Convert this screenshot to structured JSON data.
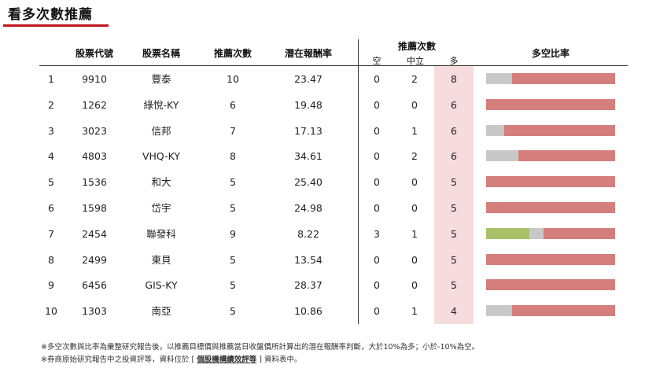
{
  "title": "看多次數推薦",
  "headers": {
    "code": "股票代號",
    "name": "股票名稱",
    "count": "推薦次數",
    "return": "潛在報酬率",
    "rec_count": "推薦次數",
    "bear": "空",
    "neutral": "中立",
    "bull": "多",
    "ratio": "多空比率"
  },
  "rows": [
    {
      "rank": "1",
      "code": "9910",
      "name": "豐泰",
      "count": "10",
      "return": "23.47",
      "bear": "0",
      "neutral": "2",
      "bull": "8"
    },
    {
      "rank": "2",
      "code": "1262",
      "name": "綠悅-KY",
      "count": "6",
      "return": "19.48",
      "bear": "0",
      "neutral": "0",
      "bull": "6"
    },
    {
      "rank": "3",
      "code": "3023",
      "name": "信邦",
      "count": "7",
      "return": "17.13",
      "bear": "0",
      "neutral": "1",
      "bull": "6"
    },
    {
      "rank": "4",
      "code": "4803",
      "name": "VHQ-KY",
      "count": "8",
      "return": "34.61",
      "bear": "0",
      "neutral": "2",
      "bull": "6"
    },
    {
      "rank": "5",
      "code": "1536",
      "name": "和大",
      "count": "5",
      "return": "25.40",
      "bear": "0",
      "neutral": "0",
      "bull": "5"
    },
    {
      "rank": "6",
      "code": "1598",
      "name": "岱宇",
      "count": "5",
      "return": "24.98",
      "bear": "0",
      "neutral": "0",
      "bull": "5"
    },
    {
      "rank": "7",
      "code": "2454",
      "name": "聯發科",
      "count": "9",
      "return": "8.22",
      "bear": "3",
      "neutral": "1",
      "bull": "5"
    },
    {
      "rank": "8",
      "code": "2499",
      "name": "東貝",
      "count": "5",
      "return": "13.54",
      "bear": "0",
      "neutral": "0",
      "bull": "5"
    },
    {
      "rank": "9",
      "code": "6456",
      "name": "GIS-KY",
      "count": "5",
      "return": "28.37",
      "bear": "0",
      "neutral": "0",
      "bull": "5"
    },
    {
      "rank": "10",
      "code": "1303",
      "name": "南亞",
      "count": "5",
      "return": "10.86",
      "bear": "0",
      "neutral": "1",
      "bull": "4"
    }
  ],
  "colors": {
    "bear": "#a9c26a",
    "neutral": "#c8c8c8",
    "bull": "#d47f7c",
    "accent": "#c0141b"
  },
  "notes": {
    "line1": "※多空次數與比率為彙整研究報告後，以推薦目標價與推薦當日收盤價所計算出的潛在報酬率判斷，大於10%為多；小於-10%為空。",
    "line2_prefix": "※券商原始研究報告中之投資評等，資料位於 [ ",
    "line2_link": "個股機構績效評等",
    "line2_suffix": " ] 資料表中。"
  }
}
